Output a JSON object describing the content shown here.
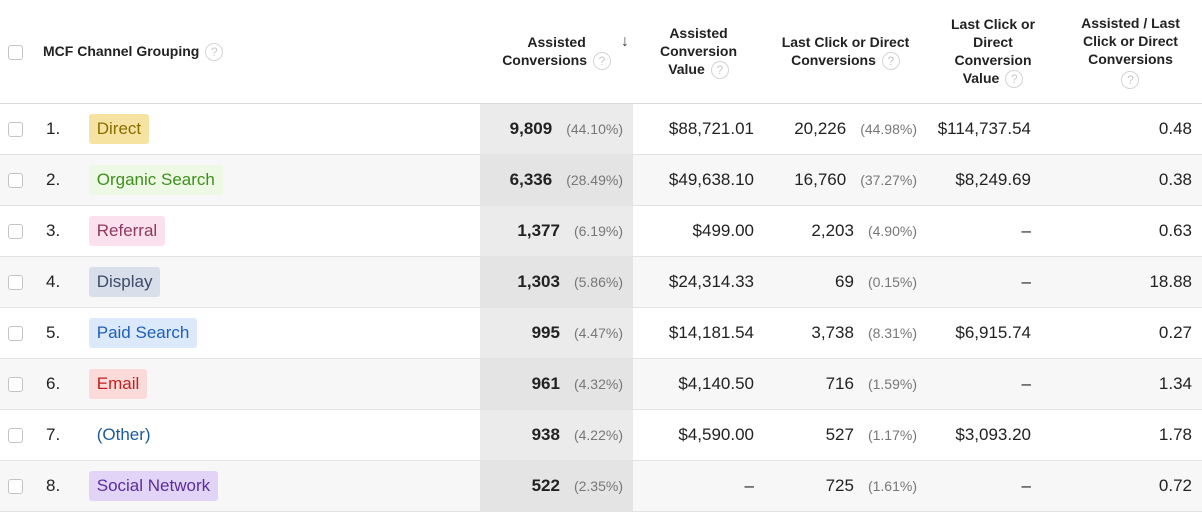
{
  "header": {
    "channel_label": "MCF Channel Grouping",
    "assisted_conv_line1": "Assisted",
    "assisted_conv_line2": "Conversions",
    "sort_arrow": "↓",
    "assisted_val_line1": "Assisted",
    "assisted_val_line2": "Conversion",
    "assisted_val_line3": "Value",
    "last_click_conv_line1": "Last Click or Direct",
    "last_click_conv_line2": "Conversions",
    "last_click_val_line1": "Last Click or",
    "last_click_val_line2": "Direct",
    "last_click_val_line3": "Conversion",
    "last_click_val_line4": "Value",
    "ratio_line1": "Assisted / Last",
    "ratio_line2": "Click or Direct",
    "ratio_line3": "Conversions",
    "help_glyph": "?"
  },
  "rows": [
    {
      "index": "1.",
      "channel": "Direct",
      "assisted": "9,809",
      "assisted_pct": "(44.10%)",
      "assisted_value": "$88,721.01",
      "last": "20,226",
      "last_pct": "(44.98%)",
      "last_value": "$114,737.54",
      "ratio": "0.48",
      "chip_bg": "#f6e3a1",
      "chip_fg": "#8a6d00"
    },
    {
      "index": "2.",
      "channel": "Organic Search",
      "assisted": "6,336",
      "assisted_pct": "(28.49%)",
      "assisted_value": "$49,638.10",
      "last": "16,760",
      "last_pct": "(37.27%)",
      "last_value": "$8,249.69",
      "ratio": "0.38",
      "chip_bg": "#edf9e4",
      "chip_fg": "#3f8f1f"
    },
    {
      "index": "3.",
      "channel": "Referral",
      "assisted": "1,377",
      "assisted_pct": "(6.19%)",
      "assisted_value": "$499.00",
      "last": "2,203",
      "last_pct": "(4.90%)",
      "last_value": "–",
      "ratio": "0.63",
      "chip_bg": "#fbe1ee",
      "chip_fg": "#8e3a5c"
    },
    {
      "index": "4.",
      "channel": "Display",
      "assisted": "1,303",
      "assisted_pct": "(5.86%)",
      "assisted_value": "$24,314.33",
      "last": "69",
      "last_pct": "(0.15%)",
      "last_value": "–",
      "ratio": "18.88",
      "chip_bg": "#d8dfeb",
      "chip_fg": "#3b4a66"
    },
    {
      "index": "5.",
      "channel": "Paid Search",
      "assisted": "995",
      "assisted_pct": "(4.47%)",
      "assisted_value": "$14,181.54",
      "last": "3,738",
      "last_pct": "(8.31%)",
      "last_value": "$6,915.74",
      "ratio": "0.27",
      "chip_bg": "#dce9fb",
      "chip_fg": "#1f5fb8"
    },
    {
      "index": "6.",
      "channel": "Email",
      "assisted": "961",
      "assisted_pct": "(4.32%)",
      "assisted_value": "$4,140.50",
      "last": "716",
      "last_pct": "(1.59%)",
      "last_value": "–",
      "ratio": "1.34",
      "chip_bg": "#fbdada",
      "chip_fg": "#c01f1f"
    },
    {
      "index": "7.",
      "channel": "(Other)",
      "assisted": "938",
      "assisted_pct": "(4.22%)",
      "assisted_value": "$4,590.00",
      "last": "527",
      "last_pct": "(1.17%)",
      "last_value": "$3,093.20",
      "ratio": "1.78",
      "chip_bg": "transparent",
      "chip_fg": "#1d5a9c"
    },
    {
      "index": "8.",
      "channel": "Social Network",
      "assisted": "522",
      "assisted_pct": "(2.35%)",
      "assisted_value": "–",
      "last": "725",
      "last_pct": "(1.61%)",
      "last_value": "–",
      "ratio": "0.72",
      "chip_bg": "#e2d4f6",
      "chip_fg": "#5a2d9c"
    }
  ]
}
